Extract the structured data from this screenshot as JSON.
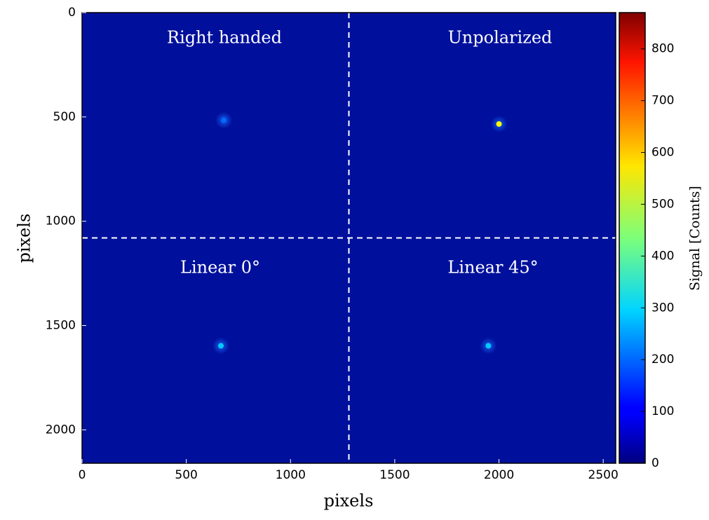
{
  "chart_data": {
    "type": "heatmap",
    "xlabel": "pixels",
    "ylabel": "pixels",
    "colorbar_label": "Signal [Counts]",
    "xlim": [
      0,
      2560
    ],
    "ylim": [
      2160,
      0
    ],
    "xticks": [
      0,
      500,
      1000,
      1500,
      2000,
      2500
    ],
    "yticks": [
      0,
      500,
      1000,
      1500,
      2000
    ],
    "clim": [
      0,
      870
    ],
    "cticks": [
      0,
      100,
      200,
      300,
      400,
      500,
      600,
      700,
      800
    ],
    "colormap": "jet",
    "background_color": "#00109c",
    "vlines": [
      1280
    ],
    "hlines": [
      1080
    ],
    "annotations": [
      "Right handed",
      "Unpolarized",
      "Linear 0°",
      "Linear 45°"
    ],
    "spots": {
      "x": [
        680,
        2000,
        666,
        1949
      ],
      "y": [
        516,
        534,
        1597,
        1597
      ],
      "values": [
        200,
        550,
        280,
        280
      ]
    }
  }
}
